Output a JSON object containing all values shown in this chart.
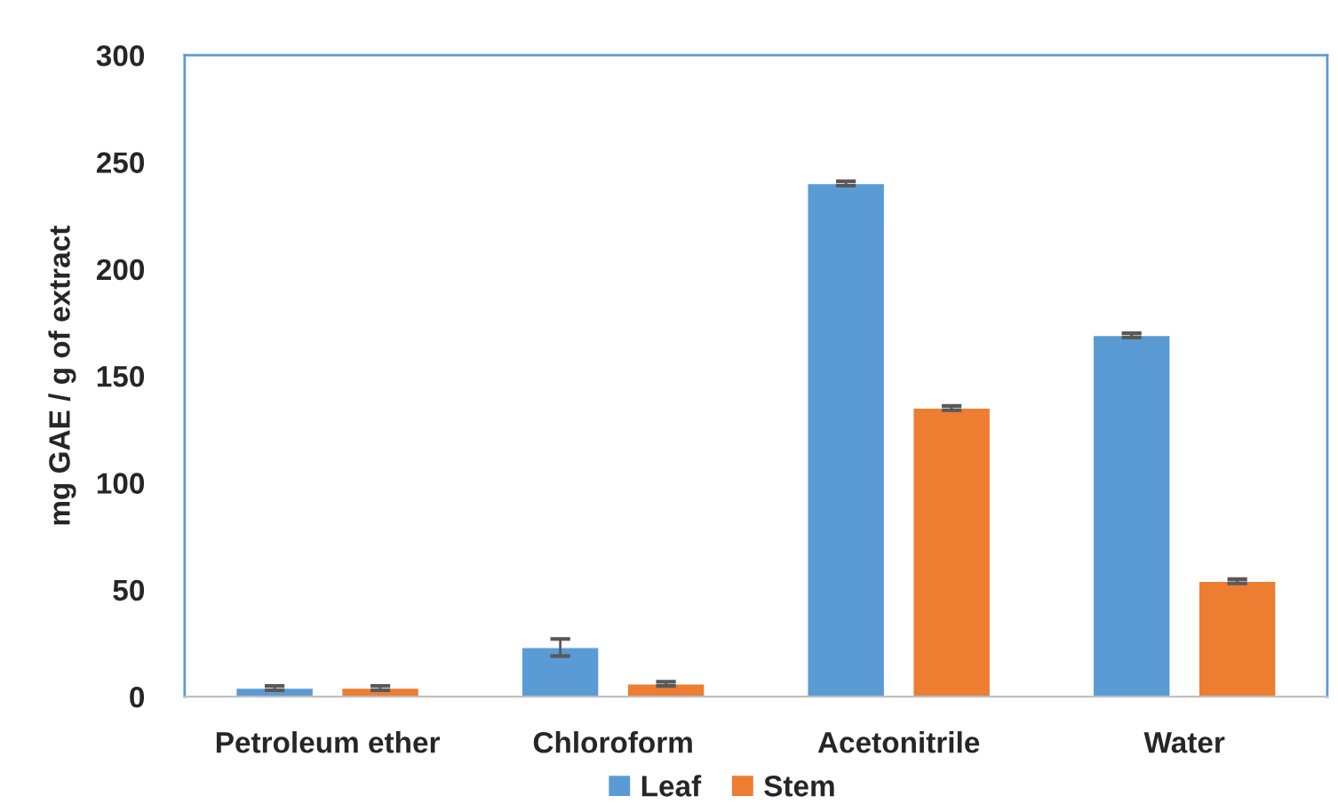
{
  "chart_data": {
    "type": "bar",
    "ylabel": "mg GAE / g of extract",
    "categories": [
      "Petroleum ether",
      "Chloroform",
      "Acetonitrile",
      "Water"
    ],
    "series": [
      {
        "name": "Leaf",
        "color": "#5b9bd5",
        "values": [
          4,
          23,
          240,
          169
        ],
        "errors": [
          1,
          4,
          1,
          1
        ]
      },
      {
        "name": "Stem",
        "color": "#ed7d31",
        "values": [
          4,
          6,
          135,
          54
        ],
        "errors": [
          1,
          1,
          1,
          1
        ]
      }
    ],
    "ylim": [
      0,
      300
    ],
    "yticks": [
      0,
      50,
      100,
      150,
      200,
      250,
      300
    ],
    "grid": false,
    "legend": "bottom"
  }
}
